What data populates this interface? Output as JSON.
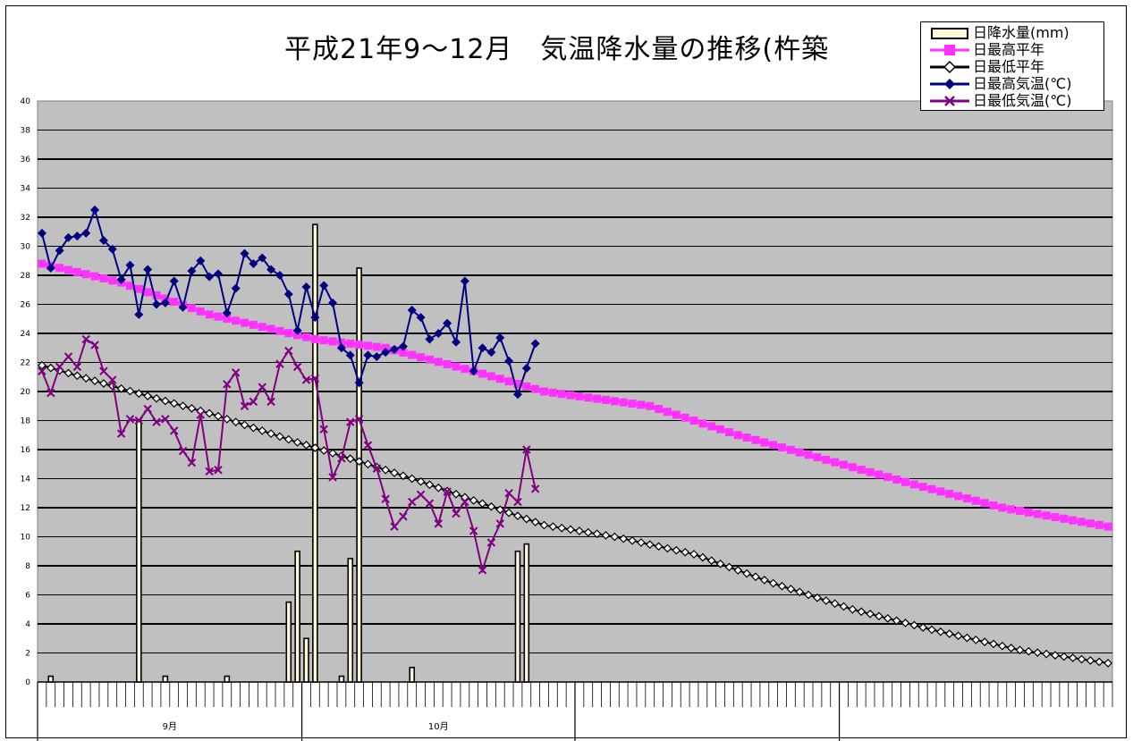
{
  "chart_data": {
    "type": "bar+line",
    "title": "平成21年9～12月　気温降水量の推移(杵築",
    "ylim": [
      0,
      40
    ],
    "yticks": [
      "0",
      "2",
      "4",
      "6",
      "8",
      "10",
      "12",
      "14",
      "16",
      "18",
      "20",
      "22",
      "24",
      "26",
      "28",
      "30",
      "32",
      "34",
      "36",
      "38",
      "40"
    ],
    "x_days": 122,
    "months": [
      {
        "label": "9月",
        "days": 30
      },
      {
        "label": "10月",
        "days": 31
      },
      {
        "label": "",
        "days": 30
      },
      {
        "label": "",
        "days": 31
      }
    ],
    "grid": true,
    "legend_position": "top-right",
    "series": [
      {
        "name": "日降水量(mm)",
        "type": "bar",
        "color": "#fff8d8",
        "values": [
          0,
          0.4,
          0,
          0,
          0,
          0,
          0,
          0,
          0,
          0,
          0,
          18,
          0,
          0,
          0.4,
          0,
          0,
          0,
          0,
          0,
          0,
          0.4,
          0,
          0,
          0,
          0,
          0,
          0,
          5.5,
          9,
          3,
          31.5,
          0,
          0,
          0.4,
          8.5,
          28.5,
          0,
          0,
          0,
          0,
          0,
          1,
          0,
          0,
          0,
          0,
          0,
          0,
          0,
          0,
          0,
          0,
          0,
          9,
          9.5,
          0,
          0,
          0,
          0,
          0
        ]
      },
      {
        "name": "日最高平年",
        "type": "line",
        "color": "#ff33ff",
        "marker": "square",
        "anchors": [
          [
            1,
            28.8
          ],
          [
            10,
            27.5
          ],
          [
            20,
            25.3
          ],
          [
            32,
            23.6
          ],
          [
            40,
            23.0
          ],
          [
            50,
            21.4
          ],
          [
            58,
            20.0
          ],
          [
            70,
            19.0
          ],
          [
            80,
            17.0
          ],
          [
            90,
            15.3
          ],
          [
            100,
            13.6
          ],
          [
            110,
            12.0
          ],
          [
            122,
            10.7
          ]
        ]
      },
      {
        "name": "日最低平年",
        "type": "line",
        "color": "#000000",
        "marker": "diamond",
        "anchors": [
          [
            1,
            21.8
          ],
          [
            10,
            20.2
          ],
          [
            20,
            18.5
          ],
          [
            30,
            16.5
          ],
          [
            38,
            15.0
          ],
          [
            44,
            13.8
          ],
          [
            50,
            12.5
          ],
          [
            58,
            10.8
          ],
          [
            66,
            10.0
          ],
          [
            75,
            8.8
          ],
          [
            84,
            6.8
          ],
          [
            93,
            5.0
          ],
          [
            102,
            3.6
          ],
          [
            112,
            2.2
          ],
          [
            122,
            1.3
          ]
        ]
      },
      {
        "name": "日最高気温(℃)",
        "type": "line",
        "color": "#000080",
        "marker": "diamond",
        "values": [
          30.9,
          28.5,
          29.7,
          30.6,
          30.7,
          30.9,
          32.5,
          30.4,
          29.8,
          27.7,
          28.7,
          25.3,
          28.4,
          26.0,
          26.1,
          27.6,
          25.8,
          28.3,
          29.0,
          27.9,
          28.1,
          25.4,
          27.1,
          29.5,
          28.8,
          29.2,
          28.4,
          28.0,
          26.7,
          24.2,
          27.2,
          25.1,
          27.3,
          26.1,
          23.0,
          22.5,
          20.6,
          22.5,
          22.4,
          22.7,
          22.9,
          23.1,
          25.6,
          25.1,
          23.6,
          24.0,
          24.7,
          23.4,
          27.6,
          21.4,
          23.0,
          22.7,
          23.7,
          22.1,
          19.8,
          21.6,
          23.3
        ]
      },
      {
        "name": "日最低気温(℃)",
        "type": "line",
        "color": "#800080",
        "marker": "x",
        "values": [
          21.4,
          19.9,
          21.7,
          22.4,
          21.7,
          23.6,
          23.2,
          21.4,
          20.8,
          17.1,
          18.1,
          18.0,
          18.8,
          17.9,
          18.1,
          17.3,
          15.9,
          15.1,
          18.4,
          14.5,
          14.6,
          20.5,
          21.3,
          19.0,
          19.3,
          20.3,
          19.3,
          21.9,
          22.8,
          21.7,
          20.8,
          20.9,
          17.4,
          14.1,
          15.4,
          17.9,
          18.1,
          16.3,
          14.7,
          12.6,
          10.7,
          11.4,
          12.4,
          12.9,
          12.3,
          10.9,
          13.1,
          11.6,
          12.4,
          10.4,
          7.7,
          9.6,
          10.9,
          13.0,
          12.4,
          16.0,
          13.3
        ]
      }
    ]
  }
}
